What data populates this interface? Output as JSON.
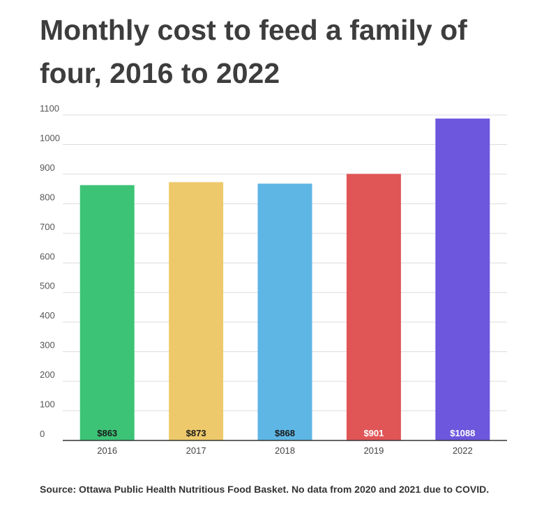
{
  "title": "Monthly cost to feed a family of four, 2016 to 2022",
  "source": "Source: Ottawa Public Health Nutritious Food Basket. No data from 2020 and 2021 due to COVID.",
  "chart_data": {
    "type": "bar",
    "title": "Monthly cost to feed a family of four, 2016 to 2022",
    "xlabel": "",
    "ylabel": "",
    "categories": [
      "2016",
      "2017",
      "2018",
      "2019",
      "2022"
    ],
    "values": [
      863,
      873,
      868,
      901,
      1088
    ],
    "data_labels": [
      "$863",
      "$873",
      "$868",
      "$901",
      "$1088"
    ],
    "bar_colors": [
      "#3cc376",
      "#eec96b",
      "#5eb6e5",
      "#e05556",
      "#6d57dd"
    ],
    "label_colors": [
      "#1a1a1a",
      "#1a1a1a",
      "#1a1a1a",
      "#ffffff",
      "#ffffff"
    ],
    "ylim": [
      0,
      1100
    ],
    "yticks": [
      0,
      100,
      200,
      300,
      400,
      500,
      600,
      700,
      800,
      900,
      1000,
      1100
    ],
    "grid": true,
    "legend": "none"
  }
}
